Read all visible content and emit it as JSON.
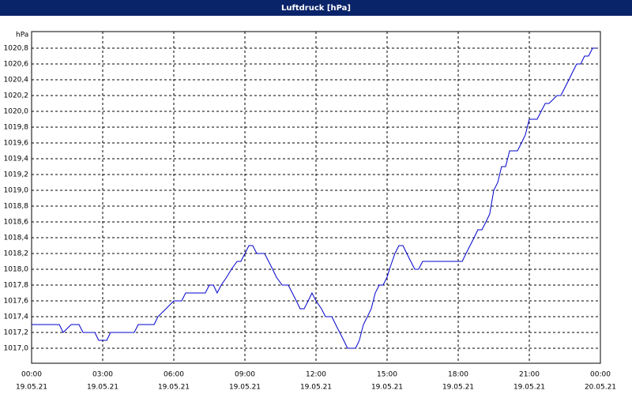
{
  "chart_data": {
    "type": "line",
    "title": "Luftdruck [hPa]",
    "y_unit": "hPa",
    "xlim": [
      0,
      24
    ],
    "ylim": [
      1016.81,
      1021.01
    ],
    "grid": true,
    "xticks": [
      {
        "value": 0,
        "label": "00:00",
        "date": "19.05.21"
      },
      {
        "value": 3,
        "label": "03:00",
        "date": "19.05.21"
      },
      {
        "value": 6,
        "label": "06:00",
        "date": "19.05.21"
      },
      {
        "value": 9,
        "label": "09:00",
        "date": "19.05.21"
      },
      {
        "value": 12,
        "label": "12:00",
        "date": "19.05.21"
      },
      {
        "value": 15,
        "label": "15:00",
        "date": "19.05.21"
      },
      {
        "value": 18,
        "label": "18:00",
        "date": "19.05.21"
      },
      {
        "value": 21,
        "label": "21:00",
        "date": "19.05.21"
      },
      {
        "value": 24,
        "label": "00:00",
        "date": "20.05.21"
      }
    ],
    "yticks": [
      {
        "value": 1017.0,
        "label": "1017,0"
      },
      {
        "value": 1017.2,
        "label": "1017,2"
      },
      {
        "value": 1017.4,
        "label": "1017,4"
      },
      {
        "value": 1017.6,
        "label": "1017,6"
      },
      {
        "value": 1017.8,
        "label": "1017,8"
      },
      {
        "value": 1018.0,
        "label": "1018,0"
      },
      {
        "value": 1018.2,
        "label": "1018,2"
      },
      {
        "value": 1018.4,
        "label": "1018,4"
      },
      {
        "value": 1018.6,
        "label": "1018,6"
      },
      {
        "value": 1018.8,
        "label": "1018,8"
      },
      {
        "value": 1019.0,
        "label": "1019,0"
      },
      {
        "value": 1019.2,
        "label": "1019,2"
      },
      {
        "value": 1019.4,
        "label": "1019,4"
      },
      {
        "value": 1019.6,
        "label": "1019,6"
      },
      {
        "value": 1019.8,
        "label": "1019,8"
      },
      {
        "value": 1020.0,
        "label": "1020,0"
      },
      {
        "value": 1020.2,
        "label": "1020,2"
      },
      {
        "value": 1020.4,
        "label": "1020,4"
      },
      {
        "value": 1020.6,
        "label": "1020,6"
      },
      {
        "value": 1020.8,
        "label": "1020,8"
      }
    ],
    "x": [
      0,
      1.17,
      1.33,
      1.67,
      2,
      2.17,
      2.67,
      2.83,
      3.17,
      3.33,
      4.33,
      4.5,
      5.17,
      5.33,
      5.67,
      6,
      6.33,
      6.5,
      7.33,
      7.5,
      7.67,
      7.83,
      8,
      8.23,
      8.43,
      8.67,
      8.83,
      9,
      9.17,
      9.33,
      9.5,
      9.83,
      10,
      10.17,
      10.33,
      10.57,
      10.83,
      11,
      11.17,
      11.33,
      11.5,
      11.67,
      11.83,
      12,
      12.23,
      12.4,
      12.67,
      12.83,
      13,
      13.17,
      13.33,
      13.67,
      13.83,
      14,
      14.17,
      14.33,
      14.5,
      14.67,
      14.83,
      15,
      15.1,
      15.33,
      15.5,
      15.67,
      15.83,
      16,
      16.17,
      16.33,
      16.5,
      18.17,
      18.33,
      18.5,
      18.67,
      18.83,
      19,
      19.17,
      19.33,
      19.5,
      19.67,
      19.83,
      20,
      20.17,
      20.5,
      20.67,
      20.83,
      21,
      21.33,
      21.5,
      21.67,
      21.83,
      22.17,
      22.33,
      22.5,
      22.67,
      22.83,
      23,
      23.17,
      23.33,
      23.5,
      23.67,
      23.83
    ],
    "series": [
      {
        "color": "#0000cc",
        "values": [
          1017.3,
          1017.3,
          1017.2,
          1017.3,
          1017.3,
          1017.2,
          1017.2,
          1017.1,
          1017.1,
          1017.2,
          1017.2,
          1017.3,
          1017.3,
          1017.4,
          1017.5,
          1017.6,
          1017.6,
          1017.7,
          1017.7,
          1017.8,
          1017.8,
          1017.7,
          1017.8,
          1017.9,
          1018.0,
          1018.1,
          1018.1,
          1018.2,
          1018.3,
          1018.3,
          1018.2,
          1018.2,
          1018.1,
          1018.0,
          1017.9,
          1017.8,
          1017.8,
          1017.7,
          1017.6,
          1017.5,
          1017.5,
          1017.6,
          1017.7,
          1017.6,
          1017.5,
          1017.4,
          1017.4,
          1017.3,
          1017.2,
          1017.1,
          1017.0,
          1017.0,
          1017.1,
          1017.3,
          1017.4,
          1017.5,
          1017.7,
          1017.8,
          1017.8,
          1017.9,
          1018.0,
          1018.2,
          1018.3,
          1018.3,
          1018.2,
          1018.1,
          1018.0,
          1018.0,
          1018.1,
          1018.1,
          1018.2,
          1018.3,
          1018.4,
          1018.5,
          1018.5,
          1018.6,
          1018.7,
          1019.0,
          1019.1,
          1019.3,
          1019.3,
          1019.5,
          1019.5,
          1019.6,
          1019.7,
          1019.9,
          1019.9,
          1020.0,
          1020.1,
          1020.1,
          1020.2,
          1020.2,
          1020.3,
          1020.4,
          1020.5,
          1020.6,
          1020.6,
          1020.7,
          1020.7,
          1020.8,
          1020.8
        ]
      }
    ]
  }
}
